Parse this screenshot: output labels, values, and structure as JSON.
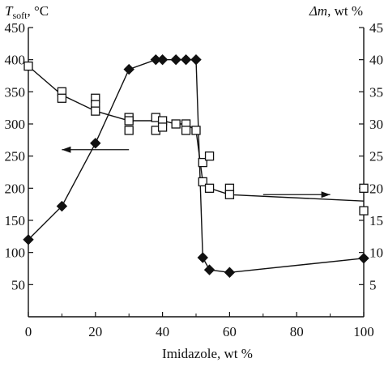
{
  "chart_data": {
    "type": "scatter",
    "title": "",
    "xlabel": "Imidazole, wt %",
    "ylabel_left": {
      "symbol": "T",
      "subscript": "soft",
      "unit": ", °C"
    },
    "ylabel_right": {
      "symbol": "Δm",
      "unit": ", wt %"
    },
    "xlim": [
      0,
      100
    ],
    "ylim_left": [
      0,
      450
    ],
    "ylim_right": [
      0,
      45
    ],
    "x_ticks": [
      "0",
      "20",
      "40",
      "60",
      "80",
      "100"
    ],
    "y_left_ticks": [
      "450",
      "400",
      "350",
      "300",
      "250",
      "200",
      "150",
      "100",
      "50"
    ],
    "y_right_ticks": [
      "45",
      "40",
      "35",
      "30",
      "25",
      "20",
      "15",
      "10",
      "5"
    ],
    "grid": false,
    "series": [
      {
        "axis": "left",
        "marker": "filled-diamond",
        "connected": true,
        "points": [
          [
            0,
            120
          ],
          [
            10,
            172
          ],
          [
            20,
            270
          ],
          [
            30,
            385
          ],
          [
            38,
            400
          ],
          [
            40,
            400
          ],
          [
            44,
            400
          ],
          [
            47,
            400
          ],
          [
            50,
            400
          ],
          [
            52,
            92
          ],
          [
            54,
            73
          ],
          [
            60,
            69
          ],
          [
            100,
            91
          ]
        ]
      },
      {
        "axis": "right",
        "marker": "open-square",
        "connected": true,
        "line": [
          [
            0,
            39
          ],
          [
            10,
            34.5
          ],
          [
            20,
            32
          ],
          [
            30,
            30.5
          ],
          [
            38,
            30.5
          ],
          [
            40,
            30.5
          ],
          [
            44,
            30
          ],
          [
            47,
            30
          ],
          [
            50,
            29
          ],
          [
            52,
            21
          ],
          [
            54,
            20
          ],
          [
            60,
            19
          ],
          [
            100,
            18
          ]
        ],
        "points": [
          [
            0,
            39
          ],
          [
            10,
            35
          ],
          [
            10,
            34
          ],
          [
            20,
            34
          ],
          [
            20,
            33
          ],
          [
            20,
            32
          ],
          [
            30,
            31
          ],
          [
            30,
            29
          ],
          [
            30,
            30.5
          ],
          [
            38,
            31
          ],
          [
            38,
            29
          ],
          [
            40,
            30.5
          ],
          [
            40,
            29.5
          ],
          [
            44,
            30
          ],
          [
            47,
            30
          ],
          [
            47,
            29
          ],
          [
            50,
            29
          ],
          [
            52,
            24
          ],
          [
            52,
            21
          ],
          [
            54,
            25
          ],
          [
            54,
            20
          ],
          [
            60,
            20
          ],
          [
            60,
            19
          ],
          [
            100,
            20
          ],
          [
            100,
            16.5
          ]
        ]
      }
    ],
    "annotations": [
      {
        "type": "arrow",
        "direction": "left",
        "from": [
          30,
          260
        ],
        "to": [
          10,
          260
        ],
        "axis": "left"
      },
      {
        "type": "arrow",
        "direction": "right",
        "from": [
          70,
          19
        ],
        "to": [
          90,
          19
        ],
        "axis": "right"
      }
    ]
  }
}
